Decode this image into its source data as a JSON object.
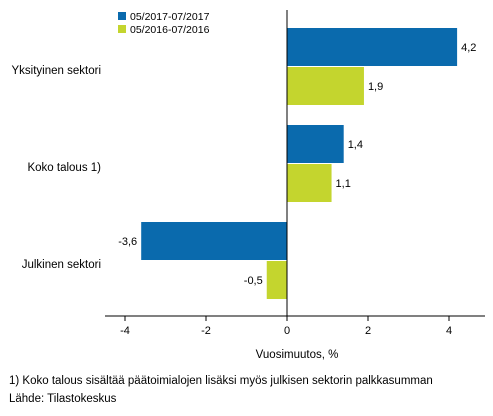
{
  "chart_data": {
    "type": "bar",
    "orientation": "horizontal",
    "categories": [
      "Yksityinen sektori",
      "Koko talous 1)",
      "Julkinen sektori"
    ],
    "series": [
      {
        "name": "05/2017-07/2017",
        "values": [
          4.2,
          1.4,
          -3.6
        ],
        "value_labels": [
          "4,2",
          "1,4",
          "-3,6"
        ],
        "color": "#0a6aad"
      },
      {
        "name": "05/2016-07/2016",
        "values": [
          1.9,
          1.1,
          -0.5
        ],
        "value_labels": [
          "1,9",
          "1,1",
          "-0,5"
        ],
        "color": "#c4d52e"
      }
    ],
    "xlabel": "Vuosimuutos, %",
    "xlim": [
      -4.3,
      4.8
    ],
    "xticks": [
      -4,
      -2,
      0,
      2,
      4
    ],
    "xtick_labels": [
      "-4",
      "-2",
      "0",
      "2",
      "4"
    ],
    "grid": false,
    "legend_position": "top-left"
  },
  "footnote": "1) Koko talous sisältää päätoimialojen lisäksi myös julkisen sektorin palkkasumman",
  "source": "Lähde: Tilastokeskus"
}
